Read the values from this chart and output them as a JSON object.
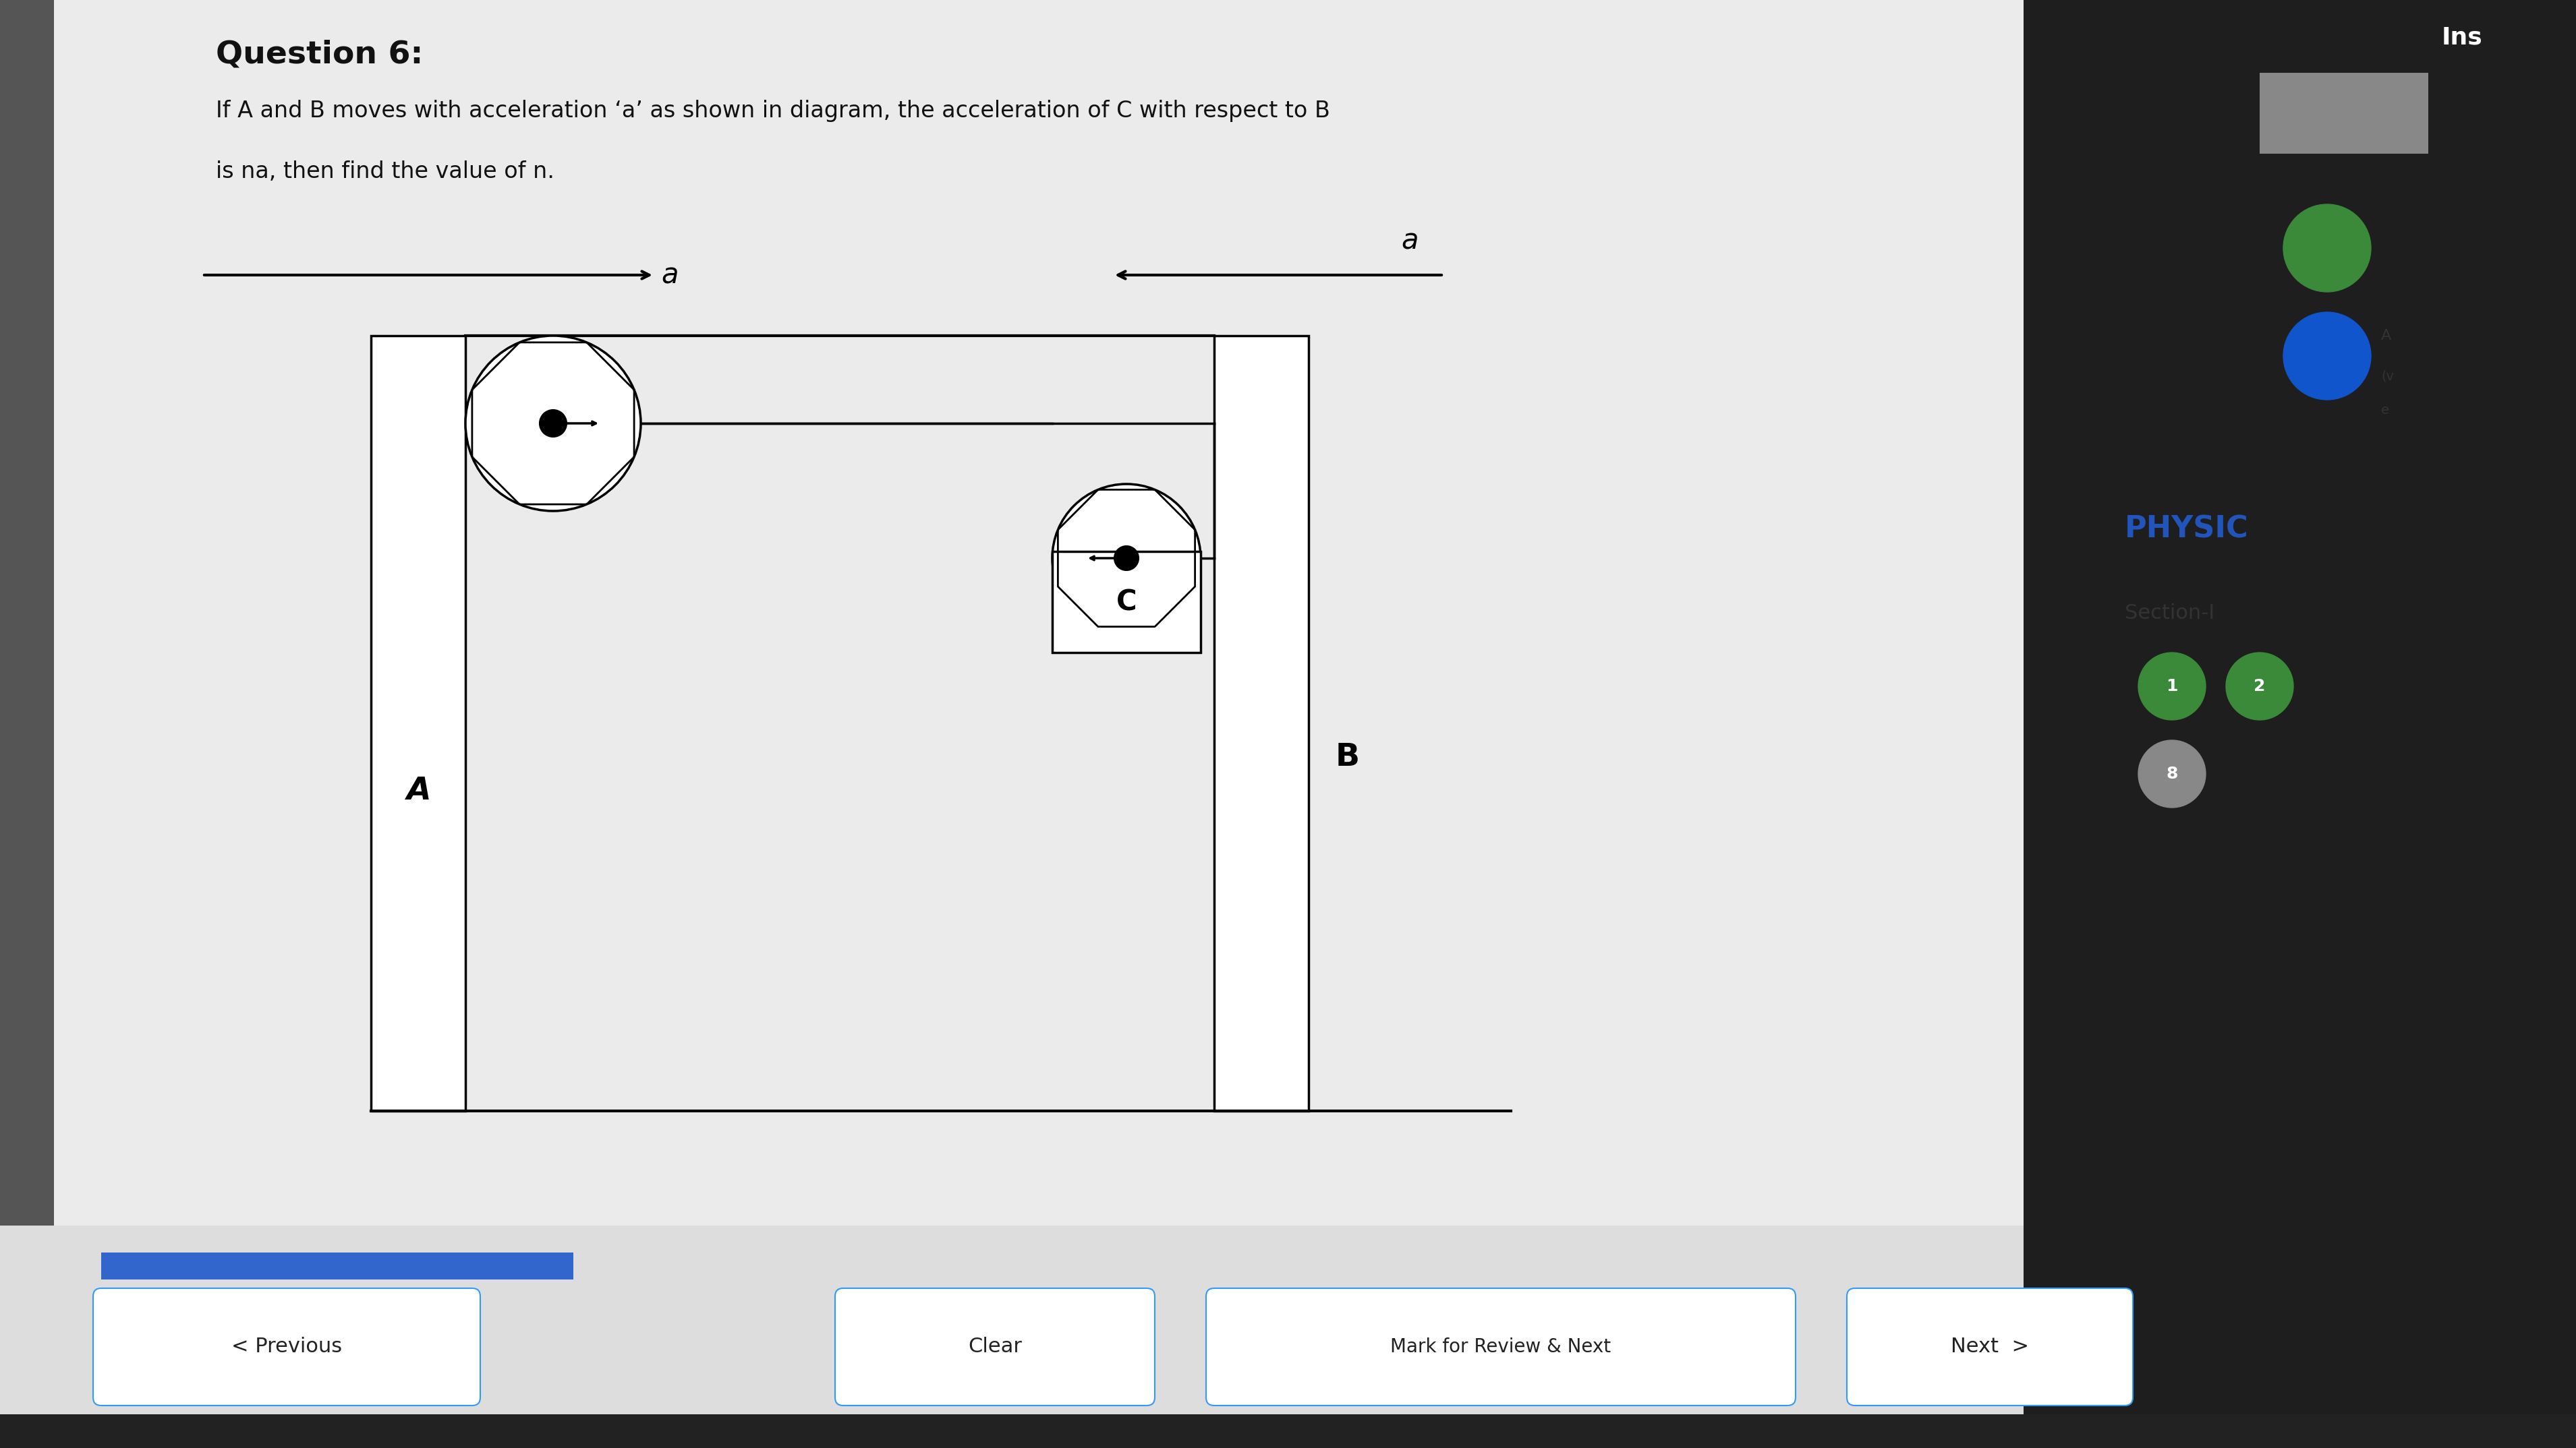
{
  "title": "Question 6:",
  "q_line1": "If A and B moves with acceleration ‘a’ as shown in diagram, the acceleration of C with respect to B",
  "q_line2": "is na, then find the value of n.",
  "bg_color": "#c0c0c0",
  "content_bg": "#ebebeb",
  "right_panel_bg": "#1e1e1e",
  "physic_text": "PHYSIC",
  "physic_color": "#2255bb",
  "section_text": "Section-I",
  "ins_text": "Ins",
  "btn_labels": [
    "< Previous",
    "Clear",
    "Mark for Review & Next",
    "Next  >"
  ]
}
